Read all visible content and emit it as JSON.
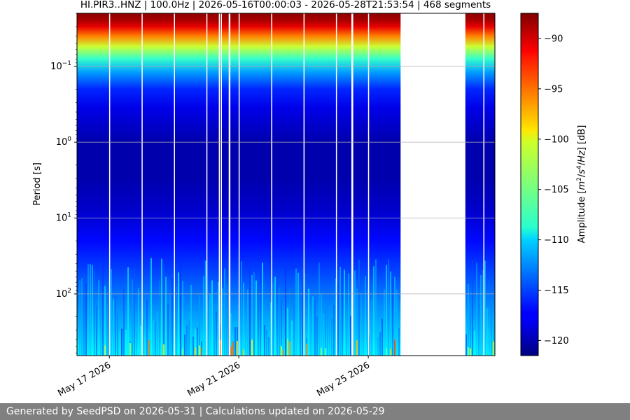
{
  "chart_data": {
    "type": "heatmap",
    "title": "HI.PIR3..HNZ | 100.0Hz | 2026-05-16T00:00:03 - 2026-05-28T21:53:54 | 468 segments",
    "ylabel": "Period [s]",
    "colorbar_label": "Amplitude [m²/s⁴/Hz] [dB]",
    "colorbar_label_parts": {
      "pre": "Amplitude [",
      "m": "m",
      "exp2": "2",
      "mid": "/",
      "s": "s",
      "exp4": "4",
      "slash": "/",
      "hz": "Hz",
      "post": "] [dB]"
    },
    "colormap": "jet",
    "x_range": [
      "2026-05-16T00:00:03",
      "2026-05-28T21:53:54"
    ],
    "x_ticks": [
      {
        "date": "2026-05-17",
        "label": "May 17 2026"
      },
      {
        "date": "2026-05-21",
        "label": "May 21 2026"
      },
      {
        "date": "2026-05-25",
        "label": "May 25 2026"
      }
    ],
    "y_scale": "log",
    "y_inverted": true,
    "y_range": [
      0.02,
      650
    ],
    "y_ticks": [
      {
        "value": 0.1,
        "base": "10",
        "exp": "−1"
      },
      {
        "value": 1,
        "base": "10",
        "exp": "0"
      },
      {
        "value": 10,
        "base": "10",
        "exp": "1"
      },
      {
        "value": 100,
        "base": "10",
        "exp": "2"
      }
    ],
    "grid": "horizontal",
    "colorbar_range": [
      -121.5,
      -87.5
    ],
    "colorbar_ticks": [
      {
        "value": -90,
        "label": "−90"
      },
      {
        "value": -95,
        "label": "−95"
      },
      {
        "value": -100,
        "label": "−100"
      },
      {
        "value": -105,
        "label": "−105"
      },
      {
        "value": -110,
        "label": "−110"
      },
      {
        "value": -115,
        "label": "−115"
      },
      {
        "value": -120,
        "label": "−120"
      }
    ],
    "data_gaps": [
      {
        "start": "2026-05-16T23:50:00",
        "end": "2026-05-17T00:00:00"
      },
      {
        "start": "2026-05-17T23:55:00",
        "end": "2026-05-18T00:05:00"
      },
      {
        "start": "2026-05-18T23:55:00",
        "end": "2026-05-19T00:05:00"
      },
      {
        "start": "2026-05-19T23:55:00",
        "end": "2026-05-20T00:10:00"
      },
      {
        "start": "2026-05-20T09:10:00",
        "end": "2026-05-20T09:20:00"
      },
      {
        "start": "2026-05-20T10:40:00",
        "end": "2026-05-20T11:10:00"
      },
      {
        "start": "2026-05-20T16:30:00",
        "end": "2026-05-20T17:45:00"
      },
      {
        "start": "2026-05-20T23:50:00",
        "end": "2026-05-21T00:00:00"
      },
      {
        "start": "2026-05-22T00:00:00",
        "end": "2026-05-22T00:10:00"
      },
      {
        "start": "2026-05-23T00:00:00",
        "end": "2026-05-23T00:10:00"
      },
      {
        "start": "2026-05-24T00:00:00",
        "end": "2026-05-24T00:10:00"
      },
      {
        "start": "2026-05-24T11:30:00",
        "end": "2026-05-24T12:50:00"
      },
      {
        "start": "2026-05-24T23:50:00",
        "end": "2026-05-25T00:00:00"
      },
      {
        "start": "2026-05-26T00:00:00",
        "end": "2026-05-28T00:00:00"
      },
      {
        "start": "2026-05-28T13:20:00",
        "end": "2026-05-28T13:30:00"
      }
    ],
    "levels": [
      {
        "period": 0.02,
        "db": -88
      },
      {
        "period": 0.025,
        "db": -89
      },
      {
        "period": 0.03,
        "db": -91
      },
      {
        "period": 0.04,
        "db": -96
      },
      {
        "period": 0.055,
        "db": -102
      },
      {
        "period": 0.08,
        "db": -107
      },
      {
        "period": 0.12,
        "db": -112
      },
      {
        "period": 0.2,
        "db": -116
      },
      {
        "period": 0.35,
        "db": -118
      },
      {
        "period": 1,
        "db": -120
      },
      {
        "period": 3,
        "db": -120
      },
      {
        "period": 8,
        "db": -119
      },
      {
        "period": 20,
        "db": -117
      },
      {
        "period": 50,
        "db": -115
      },
      {
        "period": 120,
        "db": -113
      },
      {
        "period": 300,
        "db": -111
      },
      {
        "period": 650,
        "db": -109
      }
    ]
  },
  "footer": {
    "text": "Generated by SeedPSD on 2026-05-31 | Calculations updated on 2026-05-29"
  }
}
